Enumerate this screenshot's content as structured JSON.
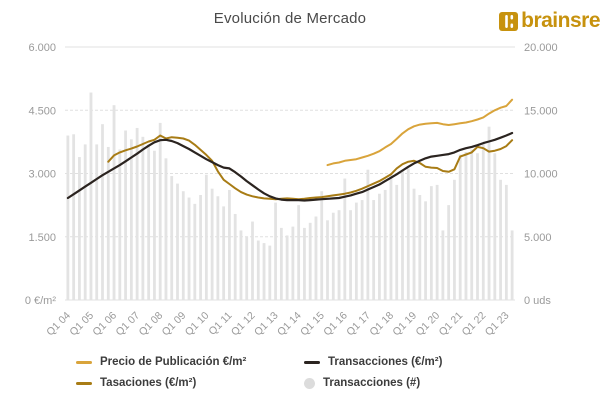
{
  "title": "Evolución de Mercado",
  "logo": {
    "text": "brainsre",
    "color": "#c7920e"
  },
  "axes": {
    "left": {
      "ticks": [
        "6.000",
        "4.500",
        "3.000",
        "1.500",
        "0 €/m²"
      ],
      "values": [
        6000,
        4500,
        3000,
        1500,
        0
      ]
    },
    "right": {
      "ticks": [
        "20.000",
        "15.000",
        "10.000",
        "5.000",
        "0 uds"
      ],
      "values": [
        20000,
        15000,
        10000,
        5000,
        0
      ]
    },
    "x": {
      "labels": [
        "Q1 04",
        "Q1 05",
        "Q1 06",
        "Q1 07",
        "Q1 08",
        "Q1 09",
        "Q1 10",
        "Q1 11",
        "Q1 12",
        "Q1 13",
        "Q1 14",
        "Q1 15",
        "Q1 16",
        "Q1 17",
        "Q1 18",
        "Q1 19",
        "Q1 20",
        "Q1 21",
        "Q1 22",
        "Q1 23"
      ],
      "label_every": 4
    }
  },
  "colors": {
    "grid": "#e0e0e0",
    "axis_text": "#9a9a9a",
    "title_text": "#4a4a4a",
    "legend_text": "#3c3c3c",
    "logo_gold": "#c7920e"
  },
  "legend": {
    "items": [
      {
        "label": "Precio de Publicación €/m²"
      },
      {
        "label": "Tasaciones (€/m²)"
      },
      {
        "label": "Transacciones (€/m²)"
      },
      {
        "label": "Transacciones (#)"
      }
    ]
  },
  "chart_data": {
    "type": "combo",
    "title": "Evolución de Mercado",
    "ylim_left": [
      0,
      6000
    ],
    "ylim_right": [
      0,
      20000
    ],
    "grid": true,
    "legend_position": "bottom",
    "quarters": [
      "Q1 04",
      "Q2 04",
      "Q3 04",
      "Q4 04",
      "Q1 05",
      "Q2 05",
      "Q3 05",
      "Q4 05",
      "Q1 06",
      "Q2 06",
      "Q3 06",
      "Q4 06",
      "Q1 07",
      "Q2 07",
      "Q3 07",
      "Q4 07",
      "Q1 08",
      "Q2 08",
      "Q3 08",
      "Q4 08",
      "Q1 09",
      "Q2 09",
      "Q3 09",
      "Q4 09",
      "Q1 10",
      "Q2 10",
      "Q3 10",
      "Q4 10",
      "Q1 11",
      "Q2 11",
      "Q3 11",
      "Q4 11",
      "Q1 12",
      "Q2 12",
      "Q3 12",
      "Q4 12",
      "Q1 13",
      "Q2 13",
      "Q3 13",
      "Q4 13",
      "Q1 14",
      "Q2 14",
      "Q3 14",
      "Q4 14",
      "Q1 15",
      "Q2 15",
      "Q3 15",
      "Q4 15",
      "Q1 16",
      "Q2 16",
      "Q3 16",
      "Q4 16",
      "Q1 17",
      "Q2 17",
      "Q3 17",
      "Q4 17",
      "Q1 18",
      "Q2 18",
      "Q3 18",
      "Q4 18",
      "Q1 19",
      "Q2 19",
      "Q3 19",
      "Q4 19",
      "Q1 20",
      "Q2 20",
      "Q3 20",
      "Q4 20",
      "Q1 21",
      "Q2 21",
      "Q3 21",
      "Q4 21",
      "Q1 22",
      "Q2 22",
      "Q3 22",
      "Q4 22",
      "Q1 23",
      "Q2 23"
    ],
    "series": [
      {
        "name": "Precio de Publicación €/m²",
        "slug": "precio-publicacion",
        "type": "line",
        "axis": "left",
        "color": "#d9a43b",
        "width": 2,
        "values": [
          null,
          null,
          null,
          null,
          null,
          null,
          null,
          null,
          null,
          null,
          null,
          null,
          null,
          null,
          null,
          null,
          null,
          null,
          null,
          null,
          null,
          null,
          null,
          null,
          null,
          null,
          null,
          null,
          null,
          null,
          null,
          null,
          null,
          null,
          null,
          null,
          null,
          null,
          null,
          null,
          null,
          null,
          null,
          null,
          null,
          3200,
          3240,
          3260,
          3300,
          3320,
          3340,
          3380,
          3420,
          3470,
          3530,
          3620,
          3700,
          3820,
          3950,
          4050,
          4120,
          4160,
          4180,
          4190,
          4200,
          4170,
          4150,
          4170,
          4190,
          4210,
          4240,
          4280,
          4330,
          4420,
          4500,
          4560,
          4600,
          4750
        ]
      },
      {
        "name": "Tasaciones (€/m²)",
        "slug": "tasaciones",
        "type": "line",
        "axis": "left",
        "color": "#a87c15",
        "width": 2,
        "values": [
          null,
          null,
          null,
          null,
          null,
          null,
          null,
          3280,
          3430,
          3500,
          3550,
          3590,
          3640,
          3700,
          3760,
          3800,
          3900,
          3830,
          3860,
          3850,
          3830,
          3780,
          3680,
          3560,
          3440,
          3300,
          3050,
          2850,
          2750,
          2650,
          2560,
          2500,
          2460,
          2430,
          2410,
          2400,
          2390,
          2400,
          2410,
          2400,
          2390,
          2400,
          2420,
          2430,
          2440,
          2460,
          2480,
          2500,
          2520,
          2550,
          2590,
          2640,
          2700,
          2760,
          2820,
          2900,
          2980,
          3120,
          3220,
          3280,
          3300,
          3250,
          3160,
          3140,
          3130,
          3060,
          3040,
          3100,
          3400,
          3450,
          3500,
          3630,
          3600,
          3520,
          3540,
          3580,
          3650,
          3790
        ]
      },
      {
        "name": "Transacciones (€/m²)",
        "slug": "transacciones-precio",
        "type": "line",
        "axis": "left",
        "color": "#2b2420",
        "width": 2.2,
        "values": [
          2420,
          2510,
          2600,
          2690,
          2780,
          2870,
          2960,
          3040,
          3120,
          3200,
          3290,
          3380,
          3470,
          3570,
          3660,
          3740,
          3790,
          3800,
          3770,
          3720,
          3650,
          3580,
          3500,
          3420,
          3340,
          3270,
          3200,
          3140,
          3120,
          3030,
          2930,
          2820,
          2720,
          2620,
          2530,
          2460,
          2410,
          2380,
          2370,
          2370,
          2370,
          2360,
          2370,
          2380,
          2390,
          2400,
          2410,
          2420,
          2450,
          2480,
          2520,
          2560,
          2620,
          2680,
          2740,
          2820,
          2900,
          2980,
          3070,
          3160,
          3240,
          3300,
          3360,
          3400,
          3420,
          3440,
          3460,
          3500,
          3560,
          3600,
          3630,
          3670,
          3720,
          3760,
          3800,
          3850,
          3900,
          3960
        ]
      },
      {
        "name": "Transacciones (#)",
        "slug": "transacciones-numero",
        "type": "bar",
        "axis": "right",
        "color": "#e3e3e3",
        "values": [
          13000,
          13100,
          11300,
          12300,
          16400,
          12300,
          13900,
          12100,
          15400,
          11900,
          13400,
          12700,
          13600,
          12900,
          12300,
          11800,
          14000,
          11200,
          9800,
          9200,
          8600,
          8100,
          7600,
          8300,
          9900,
          8800,
          8200,
          7400,
          8700,
          6800,
          5500,
          5000,
          6200,
          4700,
          4500,
          4300,
          7700,
          5700,
          5100,
          5800,
          7500,
          5700,
          6100,
          6600,
          8600,
          6300,
          6900,
          7100,
          9600,
          7100,
          7700,
          7900,
          10300,
          7900,
          8400,
          8700,
          9900,
          9100,
          10300,
          10400,
          8800,
          8300,
          7800,
          9000,
          9100,
          5500,
          7500,
          9500,
          11500,
          11700,
          11900,
          11600,
          12400,
          13700,
          11600,
          9500,
          9100,
          5500
        ]
      }
    ]
  }
}
